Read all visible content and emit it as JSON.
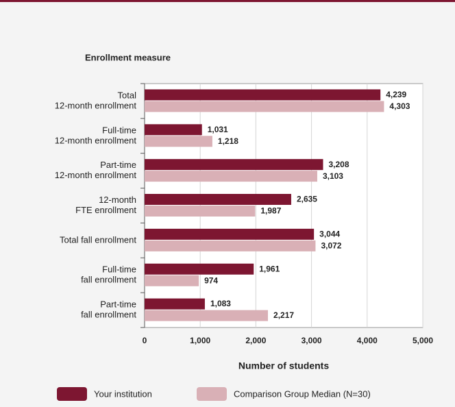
{
  "chart_data": {
    "type": "hbar",
    "y_axis_title": "Enrollment measure",
    "x_axis_title": "Number of students",
    "categories": [
      "Total\n12-month enrollment",
      "Full-time\n12-month enrollment",
      "Part-time\n12-month enrollment",
      "12-month\nFTE enrollment",
      "Total fall enrollment",
      "Full-time\nfall enrollment",
      "Part-time\nfall enrollment"
    ],
    "series": [
      {
        "name": "Your institution",
        "color": "#7d1631",
        "values": [
          4239,
          1031,
          3208,
          2635,
          3044,
          1961,
          1083
        ],
        "value_labels": [
          "4,239",
          "1,031",
          "3,208",
          "2,635",
          "3,044",
          "1,961",
          "1,083"
        ]
      },
      {
        "name": "Comparison Group Median (N=30)",
        "color": "#d9b0b6",
        "values": [
          4303,
          1218,
          3103,
          1987,
          3072,
          974,
          2217
        ],
        "value_labels": [
          "4,303",
          "1,218",
          "3,103",
          "1,987",
          "3,072",
          "974",
          "2,217"
        ]
      }
    ],
    "xlim": [
      0,
      5000
    ],
    "xticks": [
      0,
      {
        "value": 1000,
        "label": "1,000"
      },
      {
        "value": 2000,
        "label": "2,000"
      },
      {
        "value": 3000,
        "label": "3,000"
      },
      {
        "value": 4000,
        "label": "4,000"
      },
      {
        "value": 5000,
        "label": "5,000"
      }
    ],
    "grid": true
  }
}
